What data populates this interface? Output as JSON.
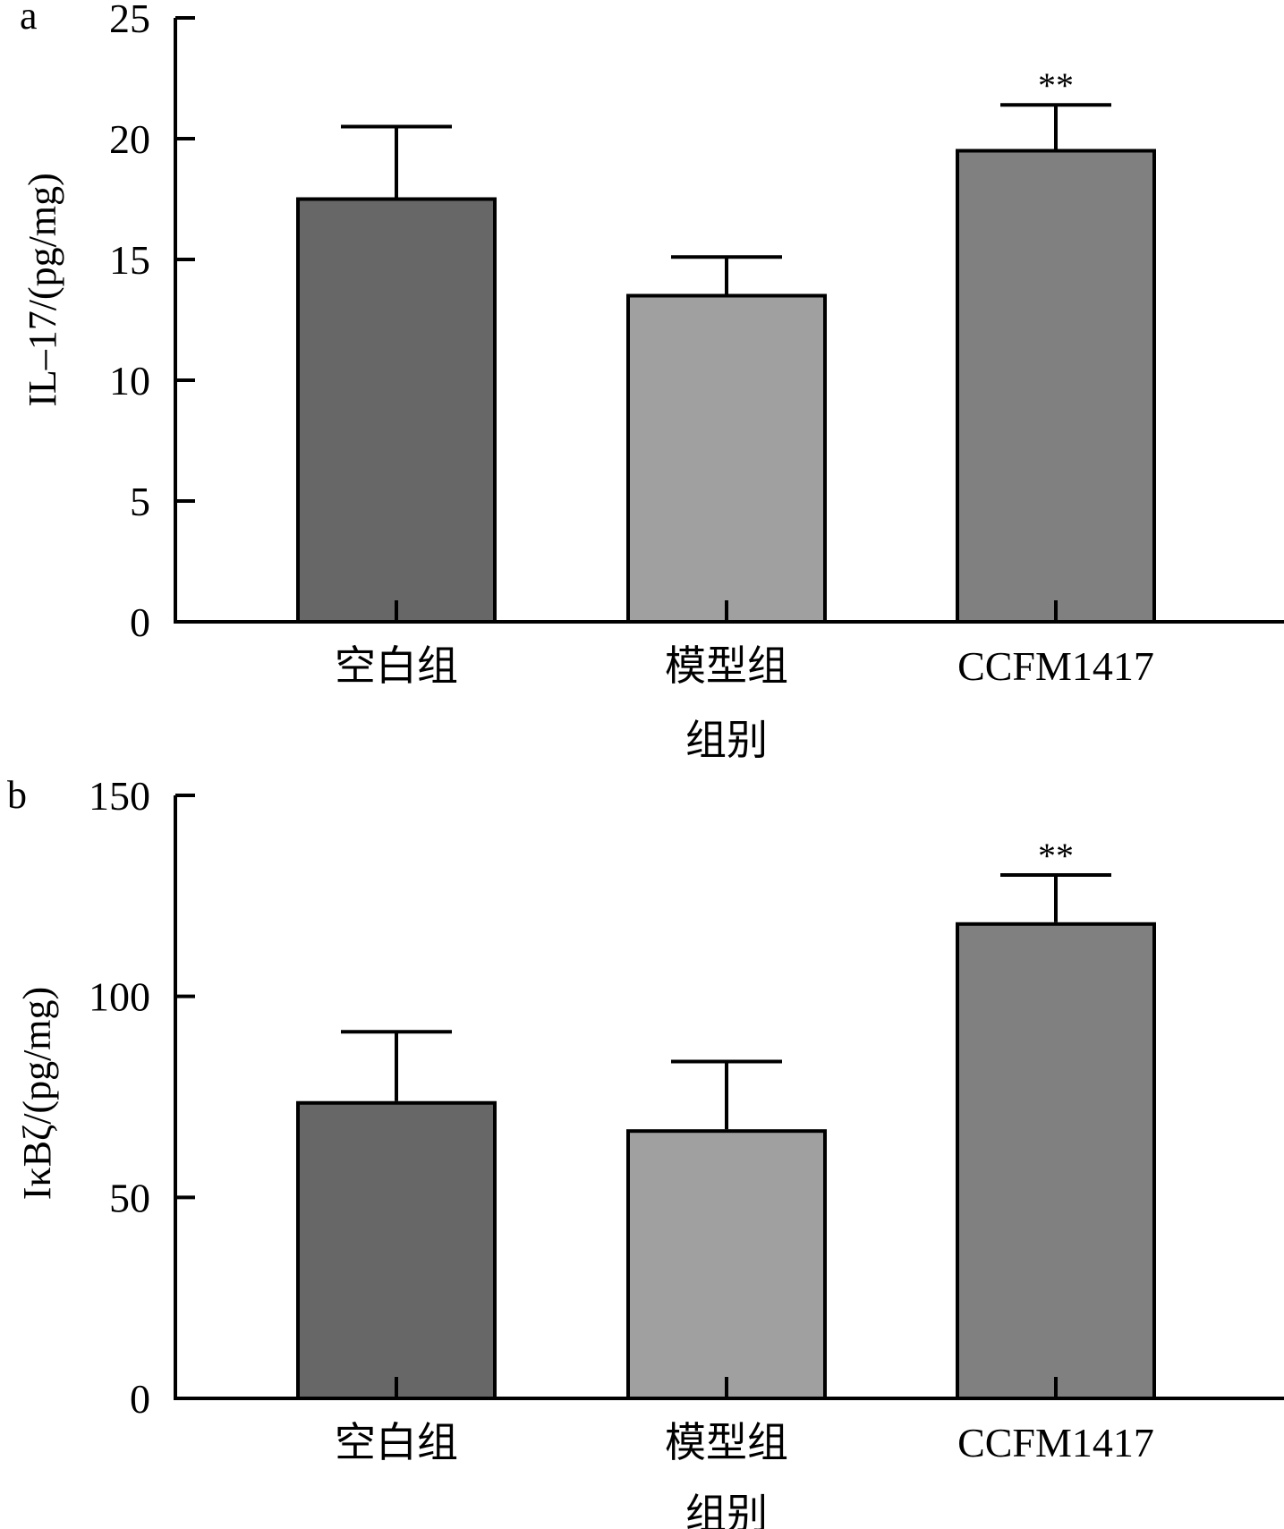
{
  "chart_data": [
    {
      "type": "bar",
      "panel_label": "a",
      "title": "",
      "xlabel": "组别",
      "ylabel": "IL–17/(pg/mg)",
      "ylim": [
        0,
        25
      ],
      "yticks": [
        0,
        5,
        10,
        15,
        20,
        25
      ],
      "ytick_labels": [
        "0",
        "5",
        "10",
        "15",
        "20",
        "25"
      ],
      "categories": [
        "空白组",
        "模型组",
        "CCFM1417"
      ],
      "values": [
        17.5,
        13.5,
        19.5
      ],
      "error_upper": [
        20.5,
        15.1,
        21.4
      ],
      "significance": [
        "",
        "",
        "**"
      ],
      "bar_colors": [
        "#676767",
        "#a0a0a0",
        "#808080"
      ],
      "grid": false,
      "legend": "none"
    },
    {
      "type": "bar",
      "panel_label": "b",
      "title": "",
      "xlabel": "组别",
      "ylabel": "IκBζ/(pg/mg)",
      "ylim": [
        0,
        150
      ],
      "yticks": [
        0,
        50,
        100,
        150
      ],
      "ytick_labels": [
        "0",
        "50",
        "100",
        "150"
      ],
      "categories": [
        "空白组",
        "模型组",
        "CCFM1417"
      ],
      "values": [
        73.5,
        66.5,
        118
      ],
      "error_upper": [
        91.2,
        83.8,
        130.2
      ],
      "significance": [
        "",
        "",
        "**"
      ],
      "bar_colors": [
        "#676767",
        "#a0a0a0",
        "#808080"
      ],
      "grid": false,
      "legend": "none"
    }
  ]
}
